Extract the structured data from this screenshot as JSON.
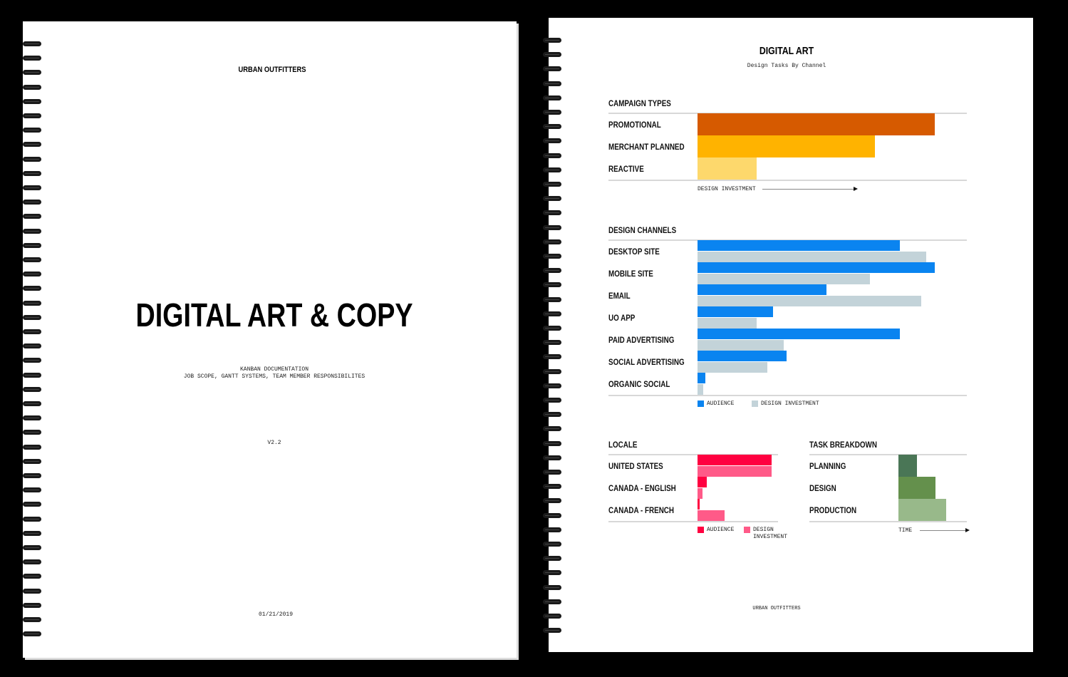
{
  "cover": {
    "brand": "URBAN OUTFITTERS",
    "title": "DIGITAL ART & COPY",
    "subtitle_1": "KANBAN DOCUMENTATION",
    "subtitle_2": "JOB SCOPE, GANTT SYSTEMS, TEAM MEMBER RESPONSIBILITES",
    "version": "V2.2",
    "date": "01/21/2019"
  },
  "report": {
    "title": "DIGITAL ART",
    "subtitle": "Design Tasks By Channel",
    "footer": "URBAN OUTFITTERS"
  },
  "chart_data": [
    {
      "type": "bar",
      "orientation": "horizontal",
      "title": "CAMPAIGN TYPES",
      "categories": [
        "PROMOTIONAL",
        "MERCHANT PLANNED",
        "REACTIVE"
      ],
      "values": [
        88,
        66,
        22
      ],
      "colors": [
        "#d65a00",
        "#ffb300",
        "#fdd86c"
      ],
      "xlabel": "DESIGN INVESTMENT",
      "xlim": [
        0,
        100
      ],
      "grid": false
    },
    {
      "type": "bar",
      "orientation": "horizontal",
      "title": "DESIGN CHANNELS",
      "categories": [
        "DESKTOP SITE",
        "MOBILE SITE",
        "EMAIL",
        "UO APP",
        "PAID ADVERTISING",
        "SOCIAL ADVERTISING",
        "ORGANIC SOCIAL"
      ],
      "series": [
        {
          "name": "AUDIENCE",
          "color": "#0a84f0",
          "values": [
            75,
            88,
            48,
            28,
            75,
            33,
            3
          ]
        },
        {
          "name": "DESIGN INVESTMENT",
          "color": "#c3d3d9",
          "values": [
            85,
            64,
            83,
            22,
            32,
            26,
            2
          ]
        }
      ],
      "xlim": [
        0,
        100
      ],
      "legend": "bottom",
      "grid": false
    },
    {
      "type": "bar",
      "orientation": "horizontal",
      "title": "LOCALE",
      "categories": [
        "UNITED STATES",
        "CANADA - ENGLISH",
        "CANADA - FRENCH"
      ],
      "series": [
        {
          "name": "AUDIENCE",
          "color": "#ff0040",
          "values": [
            93,
            12,
            3
          ]
        },
        {
          "name": "DESIGN INVESTMENT",
          "color": "#ff5a88",
          "values": [
            93,
            6,
            34
          ]
        }
      ],
      "xlim": [
        0,
        100
      ],
      "legend": "bottom",
      "grid": false
    },
    {
      "type": "bar",
      "orientation": "horizontal",
      "title": "TASK BREAKDOWN",
      "categories": [
        "PLANNING",
        "DESIGN",
        "PRODUCTION"
      ],
      "values": [
        27,
        54,
        70
      ],
      "colors": [
        "#4a7656",
        "#64904c",
        "#98b98a"
      ],
      "xlabel": "TIME",
      "xlim": [
        0,
        100
      ],
      "grid": false
    }
  ]
}
